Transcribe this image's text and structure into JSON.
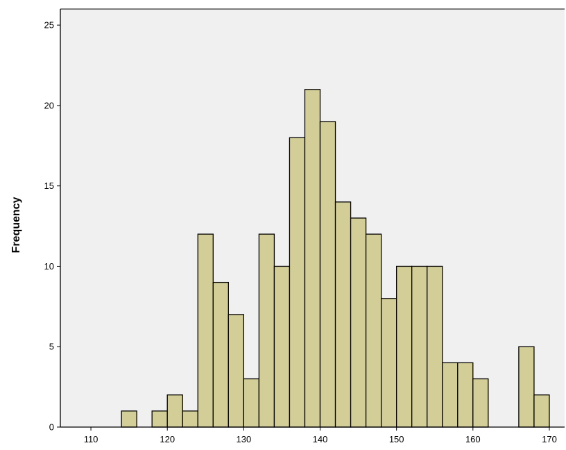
{
  "colors": {
    "plot_background": "#f0f0f0",
    "bar_fill": "#d3ce97",
    "bar_stroke": "#000000",
    "axis": "#000000"
  },
  "chart_data": {
    "type": "bar",
    "title": "",
    "xlabel": "",
    "ylabel": "Frequency",
    "xlim": [
      106,
      172
    ],
    "ylim": [
      0,
      26
    ],
    "bin_width": 2,
    "grid": false,
    "legend": "none",
    "x_ticks": [
      110,
      120,
      130,
      140,
      150,
      160,
      170
    ],
    "x_tick_labels": [
      "110",
      "120",
      "130",
      "140",
      "150",
      "160",
      "170"
    ],
    "y_ticks": [
      0,
      5,
      10,
      15,
      20,
      25
    ],
    "y_tick_labels": [
      "0",
      "5",
      "10",
      "15",
      "20",
      "25"
    ],
    "bins": [
      {
        "start": 114,
        "count": 1
      },
      {
        "start": 118,
        "count": 1
      },
      {
        "start": 120,
        "count": 2
      },
      {
        "start": 122,
        "count": 1
      },
      {
        "start": 124,
        "count": 12
      },
      {
        "start": 126,
        "count": 9
      },
      {
        "start": 128,
        "count": 7
      },
      {
        "start": 130,
        "count": 3
      },
      {
        "start": 132,
        "count": 12
      },
      {
        "start": 134,
        "count": 10
      },
      {
        "start": 136,
        "count": 18
      },
      {
        "start": 138,
        "count": 21
      },
      {
        "start": 140,
        "count": 19
      },
      {
        "start": 142,
        "count": 14
      },
      {
        "start": 144,
        "count": 13
      },
      {
        "start": 146,
        "count": 12
      },
      {
        "start": 148,
        "count": 8
      },
      {
        "start": 150,
        "count": 10
      },
      {
        "start": 152,
        "count": 10
      },
      {
        "start": 154,
        "count": 10
      },
      {
        "start": 156,
        "count": 4
      },
      {
        "start": 158,
        "count": 4
      },
      {
        "start": 160,
        "count": 3
      },
      {
        "start": 166,
        "count": 5
      },
      {
        "start": 168,
        "count": 2
      }
    ]
  }
}
